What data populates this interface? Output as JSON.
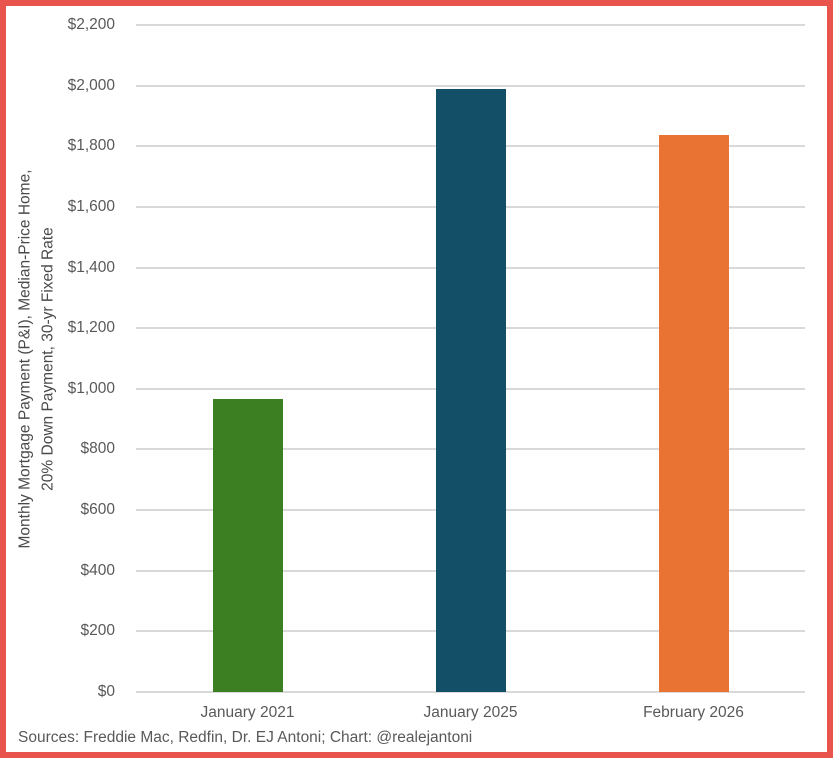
{
  "frame": {
    "border_color": "#E9544C",
    "background_color": "#FFFFFF"
  },
  "chart_data": {
    "type": "bar",
    "title": "",
    "categories": [
      "January 2021",
      "January 2025",
      "February 2026"
    ],
    "values": [
      966,
      1990,
      1837
    ],
    "bar_colors": [
      "#3C7E22",
      "#144F68",
      "#E87332"
    ],
    "ylabel_line1": "Monthly Mortgage Payment (P&I), Median-Price Home,",
    "ylabel_line2": "20% Down Payment, 30-yr Fixed Rate",
    "xlabel": "",
    "ylim": [
      0,
      2200
    ],
    "ytick_step": 200,
    "ytick_labels": [
      "$0",
      "$200",
      "$400",
      "$600",
      "$800",
      "$1,000",
      "$1,200",
      "$1,400",
      "$1,600",
      "$1,800",
      "$2,000",
      "$2,200"
    ],
    "grid": "horizontal",
    "gridline_color": "#D9D9D9",
    "tick_text_color": "#595959",
    "legend": "none",
    "source_note": "Sources: Freddie Mac, Redfin, Dr. EJ Antoni; Chart: @realejantoni"
  }
}
